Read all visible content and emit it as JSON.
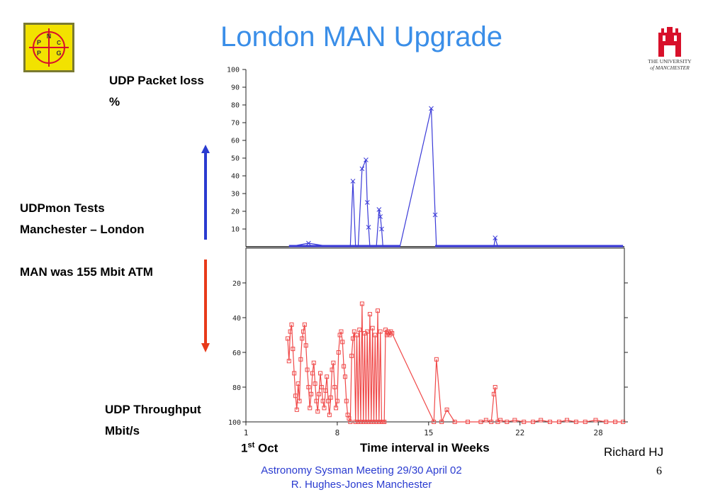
{
  "slide": {
    "title": "London MAN Upgrade",
    "labels": {
      "packet_loss_line1": "UDP Packet loss",
      "packet_loss_line2": "%",
      "udpmon_line1": "UDPmon Tests",
      "udpmon_line2": "Manchester – London",
      "man": "MAN was 155 Mbit ATM",
      "throughput_line1": "UDP Throughput",
      "throughput_line2": "Mbit/s",
      "oct_prefix": "1",
      "oct_sup": "st",
      "oct_suffix": " Oct",
      "time_interval": "Time interval in Weeks",
      "author": "Richard HJ"
    },
    "logos": {
      "npg_letters": [
        "N",
        "P",
        "P",
        "G"
      ],
      "uom_text_line1": "THE UNIVERSITY",
      "uom_text_line2": "of MANCHESTER"
    },
    "footer": {
      "line1": "Astronomy Sysman Meeting  29/30 April 02",
      "line2": "R. Hughes-Jones  Manchester"
    },
    "page_number": "6",
    "colors": {
      "title": "#3a8ee8",
      "loss_series": "#3a3ad8",
      "throughput_series": "#f04848",
      "up_arrow": "#2a3bd0",
      "down_arrow": "#e83a1a",
      "logo_bg": "#f2e200",
      "logo_red": "#d8102a"
    }
  },
  "chart_data": [
    {
      "type": "line",
      "ylabel": "UDP Packet loss %",
      "ylim": [
        0,
        100
      ],
      "y_ticks": [
        10,
        20,
        30,
        40,
        50,
        60,
        70,
        80,
        90,
        100
      ],
      "xlim": [
        1,
        30
      ],
      "series": [
        {
          "x": [
            4.3,
            5.8,
            7.5,
            8.7,
            9.0,
            9.2,
            9.4,
            9.5,
            9.6,
            9.9,
            10.2,
            10.3,
            10.4,
            10.5,
            10.6,
            10.8,
            11.0,
            11.2,
            11.3,
            11.4,
            11.5,
            11.8,
            12.0,
            12.5,
            12.8,
            15.2,
            15.5,
            15.6,
            15.8,
            17.0,
            19.0,
            20.0,
            20.1,
            20.3,
            22.0,
            24.0,
            26.0,
            28.0,
            29.9
          ],
          "y": [
            0,
            2,
            0,
            0,
            0,
            37,
            0,
            0,
            0,
            44,
            49,
            25,
            11,
            0,
            0,
            0,
            0,
            21,
            17,
            10,
            0,
            0,
            0,
            0,
            0,
            78,
            18,
            0,
            0,
            0,
            0,
            0,
            5,
            0,
            0,
            0,
            0,
            0,
            0
          ]
        }
      ]
    },
    {
      "type": "line",
      "ylabel": "UDP Throughput Mbit/s",
      "ylim": [
        0,
        100
      ],
      "y_ticks": [
        20,
        40,
        60,
        80,
        100
      ],
      "inverted_y": true,
      "xlim": [
        1,
        30
      ],
      "x_ticks": [
        1,
        8,
        15,
        22,
        28
      ],
      "series": [
        {
          "x": [
            4.2,
            4.3,
            4.4,
            4.5,
            4.6,
            4.7,
            4.8,
            4.9,
            5.0,
            5.1,
            5.2,
            5.3,
            5.4,
            5.5,
            5.6,
            5.7,
            5.8,
            5.9,
            6.0,
            6.1,
            6.2,
            6.3,
            6.4,
            6.5,
            6.6,
            6.7,
            6.8,
            6.9,
            7.0,
            7.1,
            7.2,
            7.3,
            7.4,
            7.5,
            7.6,
            7.7,
            7.8,
            7.9,
            8.0,
            8.1,
            8.2,
            8.3,
            8.4,
            8.5,
            8.6,
            8.7,
            8.8,
            8.9,
            9.0,
            9.1,
            9.2,
            9.3,
            9.4,
            9.5,
            9.6,
            9.7,
            9.8,
            9.9,
            10.0,
            10.1,
            10.2,
            10.3,
            10.4,
            10.5,
            10.6,
            10.7,
            10.8,
            10.9,
            11.0,
            11.1,
            11.2,
            11.3,
            11.4,
            11.5,
            11.6,
            11.7,
            11.8,
            11.9,
            12.0,
            12.1,
            12.2,
            15.4,
            15.6,
            16.0,
            16.4,
            17.0,
            18.0,
            19.0,
            19.4,
            19.8,
            20.0,
            20.1,
            20.3,
            20.5,
            21.0,
            21.6,
            22.3,
            23.0,
            23.6,
            24.3,
            25.0,
            25.6,
            26.3,
            27.0,
            27.8,
            28.6,
            29.3,
            29.9
          ],
          "y": [
            52,
            65,
            48,
            44,
            58,
            72,
            85,
            93,
            78,
            88,
            64,
            52,
            48,
            44,
            56,
            70,
            80,
            92,
            84,
            72,
            66,
            78,
            88,
            94,
            84,
            72,
            80,
            88,
            92,
            82,
            74,
            88,
            96,
            86,
            70,
            66,
            80,
            92,
            88,
            60,
            50,
            48,
            54,
            68,
            74,
            88,
            96,
            98,
            100,
            62,
            52,
            48,
            100,
            50,
            100,
            47,
            100,
            32,
            100,
            49,
            100,
            48,
            100,
            38,
            100,
            46,
            100,
            50,
            100,
            36,
            100,
            48,
            100,
            100,
            100,
            47,
            50,
            48,
            50,
            48,
            49,
            100,
            64,
            100,
            93,
            100,
            100,
            100,
            99,
            100,
            84,
            80,
            100,
            99,
            100,
            99,
            100,
            100,
            99,
            100,
            100,
            99,
            100,
            100,
            99,
            100,
            100,
            100
          ]
        }
      ]
    }
  ]
}
